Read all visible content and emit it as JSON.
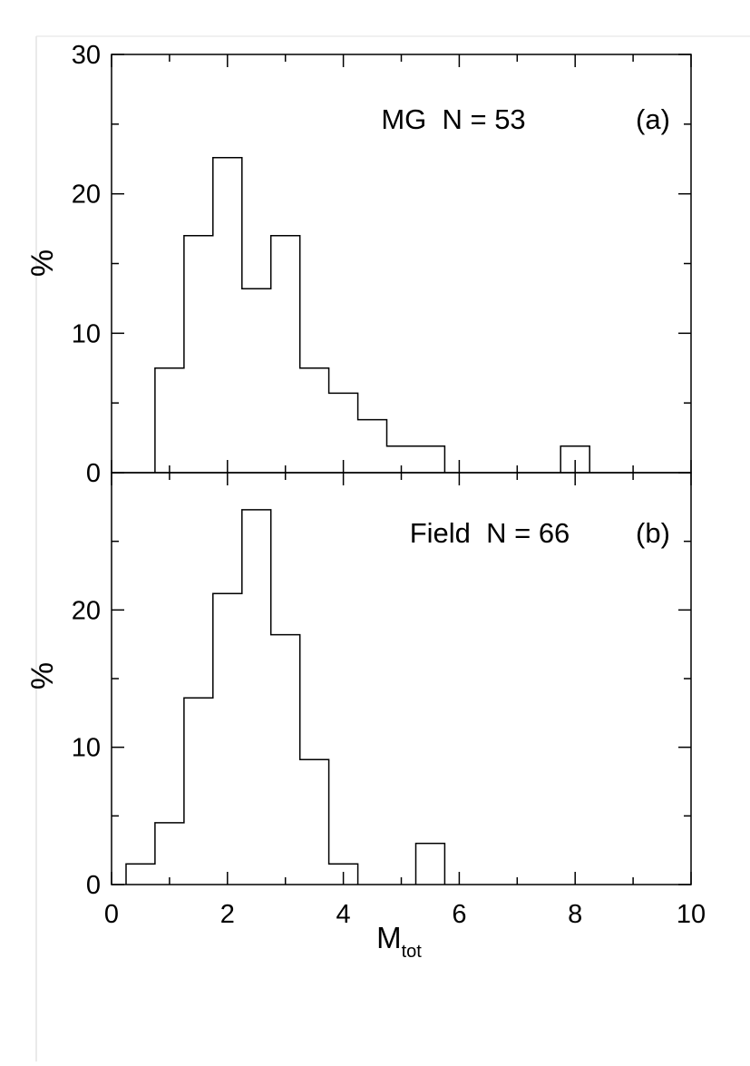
{
  "chart_data": [
    {
      "type": "bar",
      "panel_label": "(a)",
      "annotation": "MG  N = 53",
      "ylabel": "%",
      "xlabel": "",
      "ylim": [
        0,
        30
      ],
      "xlim": [
        0,
        10
      ],
      "bin_width": 0.5,
      "yticks": [
        0,
        10,
        20,
        30
      ],
      "ytick_labels": [
        "0",
        "10",
        "20",
        "30"
      ],
      "bins": [
        {
          "x": 1.0,
          "y": 7.5
        },
        {
          "x": 1.5,
          "y": 17.0
        },
        {
          "x": 2.0,
          "y": 22.6
        },
        {
          "x": 2.5,
          "y": 13.2
        },
        {
          "x": 3.0,
          "y": 17.0
        },
        {
          "x": 3.5,
          "y": 7.5
        },
        {
          "x": 4.0,
          "y": 5.7
        },
        {
          "x": 4.5,
          "y": 3.8
        },
        {
          "x": 5.0,
          "y": 1.9
        },
        {
          "x": 5.5,
          "y": 1.9
        },
        {
          "x": 8.0,
          "y": 1.9
        }
      ]
    },
    {
      "type": "bar",
      "panel_label": "(b)",
      "annotation": "Field  N = 66",
      "ylabel": "%",
      "xlabel": "M",
      "xlabel_sub": "tot",
      "ylim": [
        0,
        30
      ],
      "xlim": [
        0,
        10
      ],
      "bin_width": 0.5,
      "yticks": [
        0,
        10,
        20
      ],
      "ytick_labels": [
        "0",
        "10",
        "20"
      ],
      "xticks": [
        0,
        2,
        4,
        6,
        8,
        10
      ],
      "xtick_labels": [
        "0",
        "2",
        "4",
        "6",
        "8",
        "10"
      ],
      "bins": [
        {
          "x": 0.5,
          "y": 1.5
        },
        {
          "x": 1.0,
          "y": 4.5
        },
        {
          "x": 1.5,
          "y": 13.6
        },
        {
          "x": 2.0,
          "y": 21.2
        },
        {
          "x": 2.5,
          "y": 27.3
        },
        {
          "x": 3.0,
          "y": 18.2
        },
        {
          "x": 3.5,
          "y": 9.1
        },
        {
          "x": 4.0,
          "y": 1.5
        },
        {
          "x": 5.5,
          "y": 3.0
        }
      ]
    }
  ]
}
